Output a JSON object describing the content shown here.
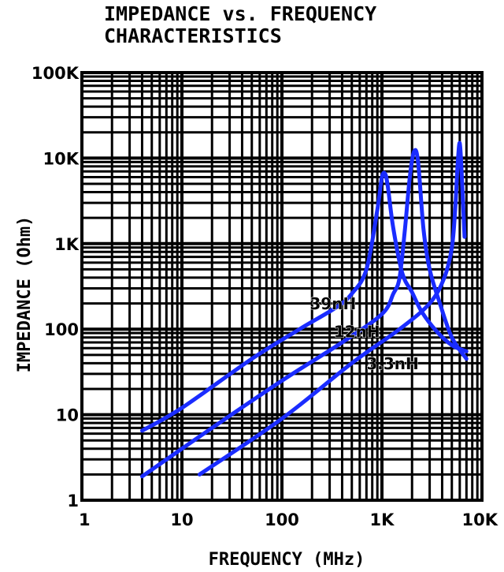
{
  "chart_data": {
    "type": "line",
    "title_lines": [
      "IMPEDANCE vs. FREQUENCY",
      "CHARACTERISTICS"
    ],
    "xlabel": "FREQUENCY (MHz)",
    "ylabel": "IMPEDANCE (Ohm)",
    "x_scale": "log",
    "y_scale": "log",
    "xlim": [
      1,
      10000
    ],
    "ylim": [
      1,
      100000
    ],
    "x_tick_labels": [
      "1",
      "10",
      "100",
      "1K",
      "10K"
    ],
    "y_tick_labels": [
      "1",
      "10",
      "100",
      "1K",
      "10K",
      "100K"
    ],
    "grid": true,
    "line_color": "#1a2cff",
    "series": [
      {
        "name": "39nH",
        "points": [
          [
            4,
            6.5
          ],
          [
            10,
            12
          ],
          [
            50,
            45
          ],
          [
            150,
            100
          ],
          [
            350,
            180
          ],
          [
            500,
            260
          ],
          [
            700,
            500
          ],
          [
            900,
            2500
          ],
          [
            1000,
            6000
          ],
          [
            1080,
            6500
          ],
          [
            1150,
            4500
          ],
          [
            1300,
            1500
          ],
          [
            1600,
            450
          ],
          [
            2000,
            270
          ],
          [
            2500,
            160
          ],
          [
            3500,
            95
          ],
          [
            5000,
            65
          ],
          [
            7000,
            55
          ]
        ]
      },
      {
        "name": "12nH",
        "points": [
          [
            4,
            1.9
          ],
          [
            20,
            7
          ],
          [
            100,
            25
          ],
          [
            400,
            70
          ],
          [
            1000,
            150
          ],
          [
            1300,
            260
          ],
          [
            1500,
            400
          ],
          [
            1700,
            1500
          ],
          [
            1900,
            6000
          ],
          [
            2100,
            12000
          ],
          [
            2300,
            9000
          ],
          [
            2600,
            1500
          ],
          [
            3000,
            500
          ],
          [
            3800,
            200
          ],
          [
            5000,
            80
          ],
          [
            7000,
            45
          ]
        ]
      },
      {
        "name": "3.3nH",
        "points": [
          [
            15,
            2
          ],
          [
            100,
            9
          ],
          [
            500,
            40
          ],
          [
            1500,
            100
          ],
          [
            3000,
            200
          ],
          [
            4200,
            400
          ],
          [
            5000,
            900
          ],
          [
            5400,
            2500
          ],
          [
            5700,
            8000
          ],
          [
            6000,
            15000
          ],
          [
            6300,
            6000
          ],
          [
            6700,
            1200
          ]
        ]
      }
    ]
  }
}
